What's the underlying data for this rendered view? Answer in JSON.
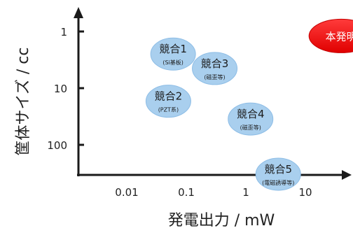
{
  "chart_data": {
    "type": "scatter",
    "title": "",
    "xlabel": "発電出力 / mW",
    "ylabel": "筐体サイズ / cc",
    "x_scale": "log",
    "y_scale": "log",
    "y_inverted": true,
    "xlim": [
      0.001,
      100
    ],
    "ylim": [
      0.3,
      1000
    ],
    "x_ticks": [
      {
        "value": 0.01,
        "label": "0.01"
      },
      {
        "value": 0.1,
        "label": "0.1"
      },
      {
        "value": 1,
        "label": "1"
      },
      {
        "value": 10,
        "label": "10"
      }
    ],
    "y_ticks": [
      {
        "value": 1,
        "label": "1"
      },
      {
        "value": 10,
        "label": "10"
      },
      {
        "value": 100,
        "label": "100"
      }
    ],
    "grid": false,
    "legend": "none",
    "points": [
      {
        "label": "競合1",
        "note": "(Si基板)",
        "x": 0.06,
        "y": 2.5,
        "color": "#a9cfee"
      },
      {
        "label": "競合2",
        "note": "(PZT系)",
        "x": 0.05,
        "y": 17,
        "color": "#a9cfee"
      },
      {
        "label": "競合3",
        "note": "(磁歪等)",
        "x": 0.3,
        "y": 4.5,
        "color": "#a9cfee"
      },
      {
        "label": "競合4",
        "note": "(磁歪等)",
        "x": 1.2,
        "y": 35,
        "color": "#a9cfee"
      },
      {
        "label": "競合5",
        "note": "(電磁誘導等)",
        "x": 3.5,
        "y": 330,
        "color": "#a9cfee"
      },
      {
        "label": "本発明",
        "note": "",
        "x": 40,
        "y": 1.2,
        "color": "#ff0000"
      }
    ]
  }
}
